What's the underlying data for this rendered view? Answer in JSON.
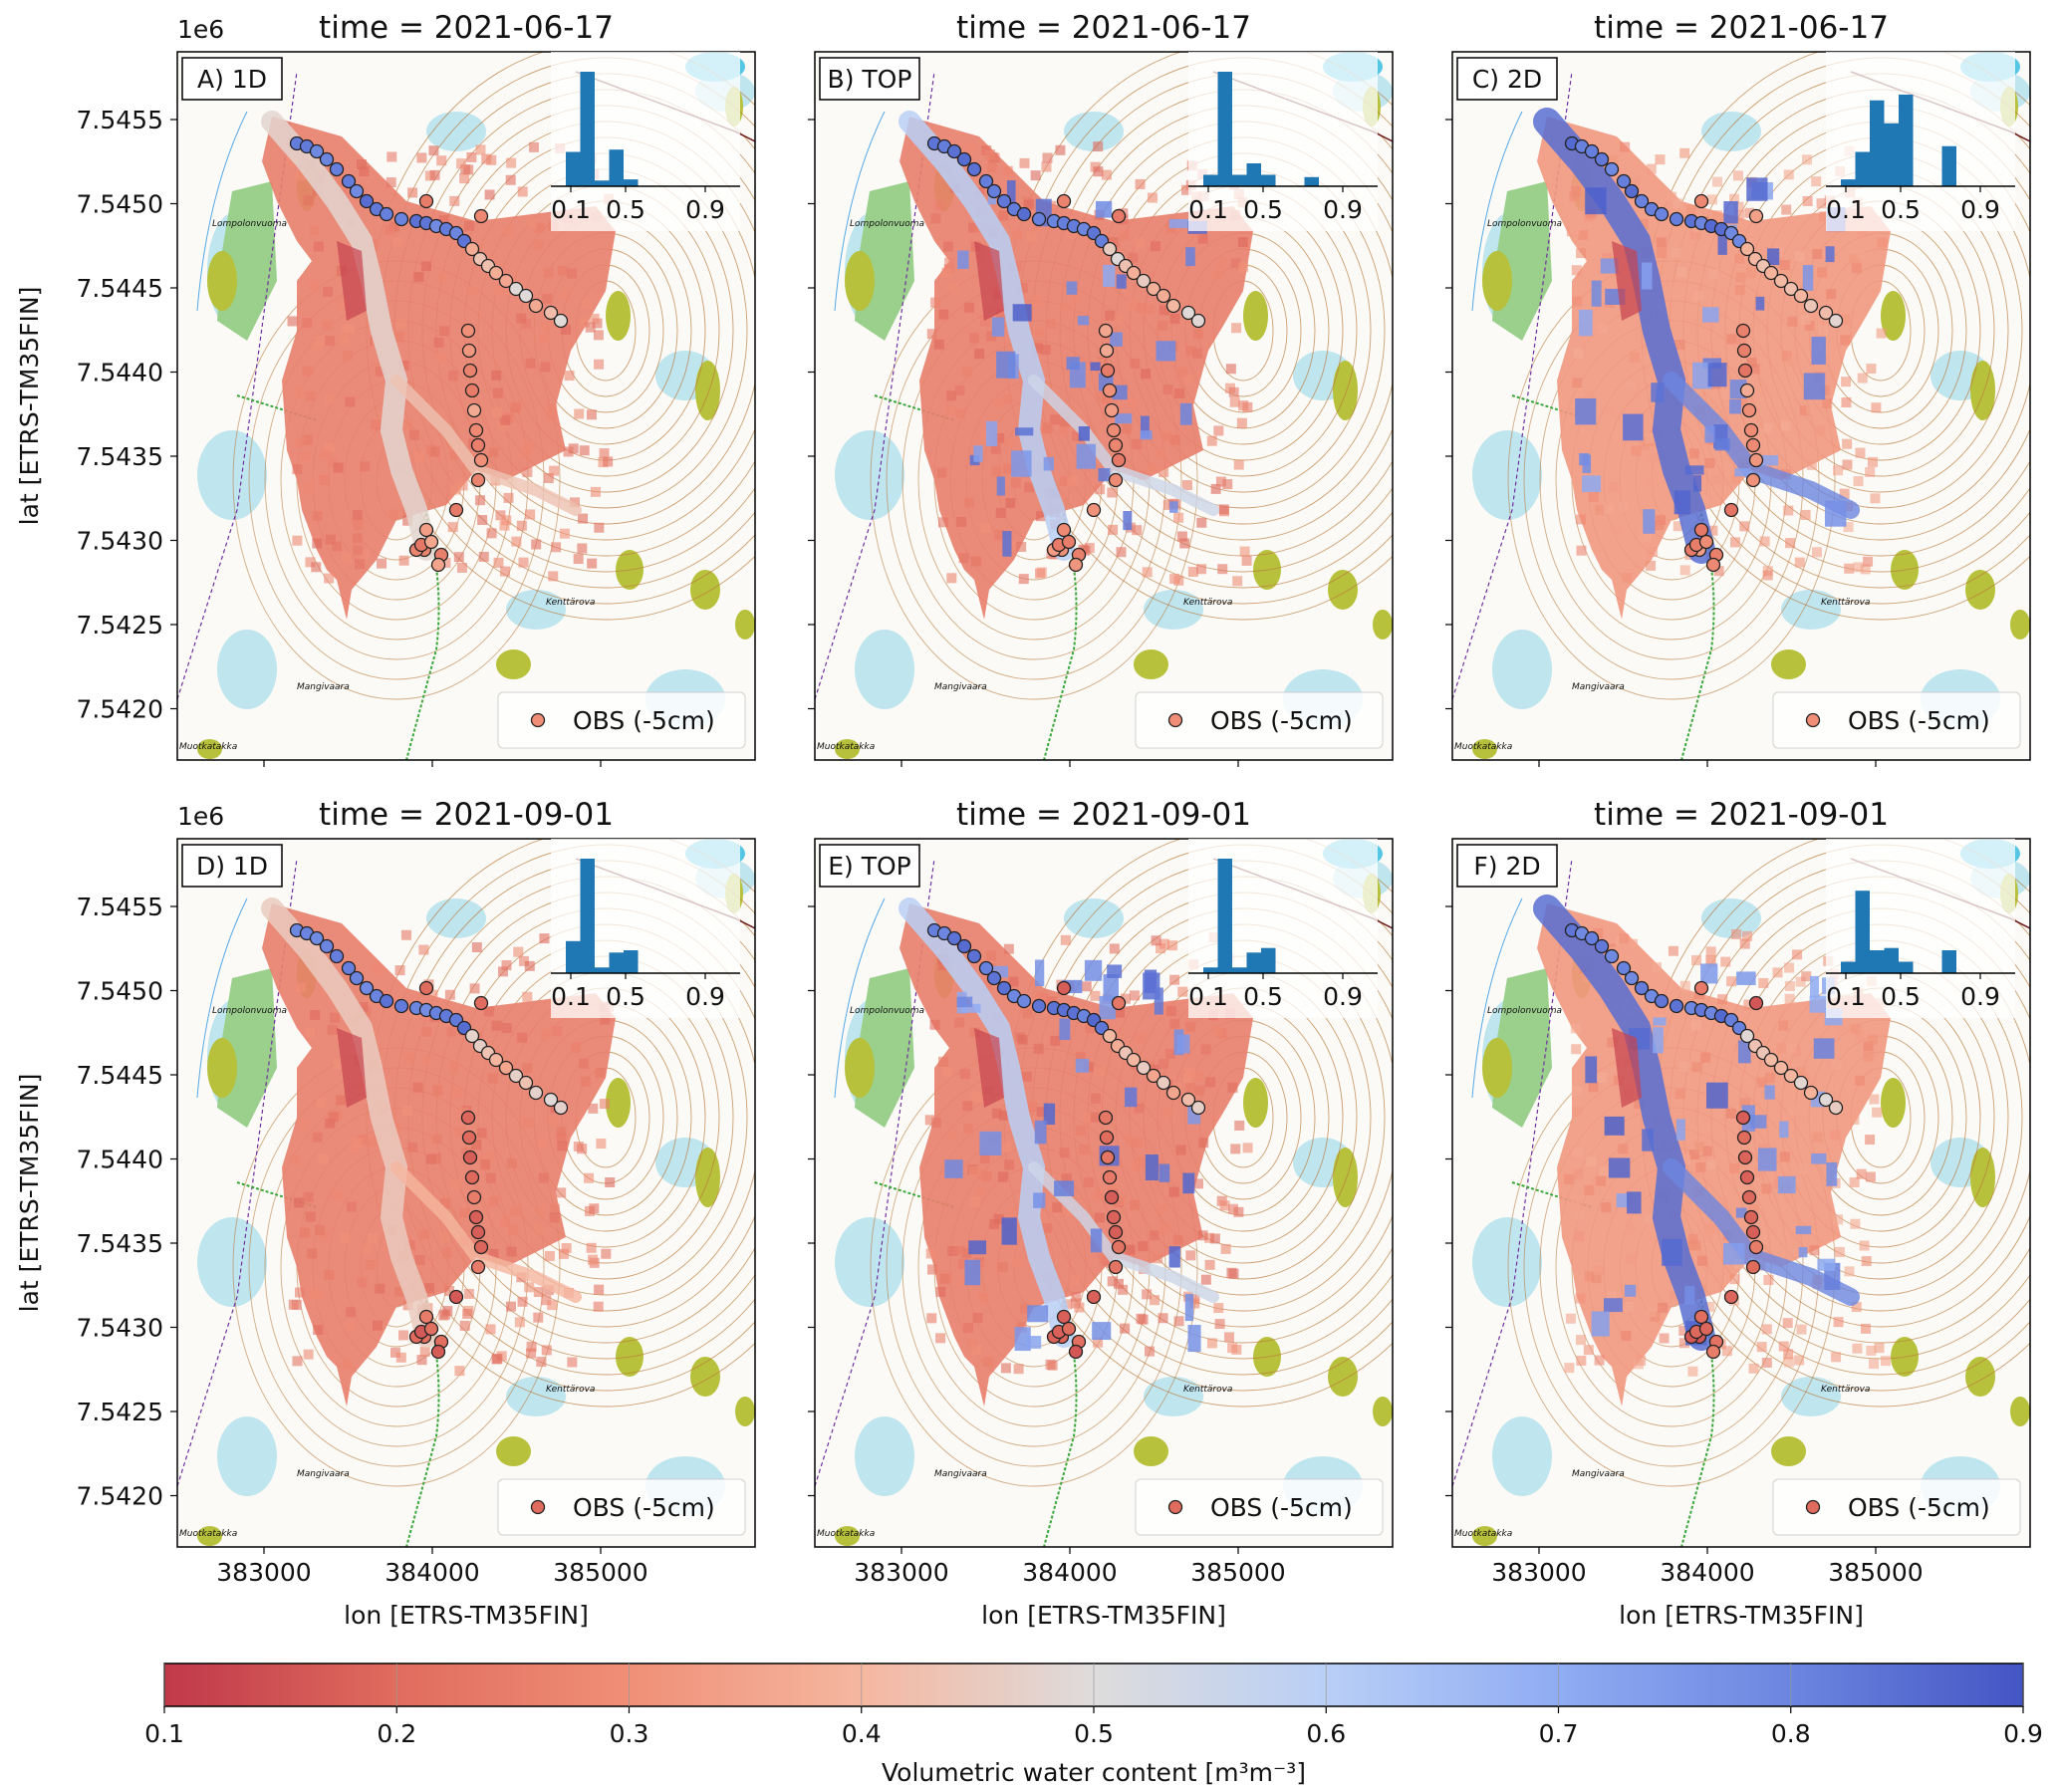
{
  "figure": {
    "ylabel": "lat [ETRS-TM35FIN]",
    "xlabel": "lon [ETRS-TM35FIN]",
    "y_offset_label": "1e6",
    "y_ticks": [
      "7.5455",
      "7.5450",
      "7.5445",
      "7.5440",
      "7.5435",
      "7.5430",
      "7.5425",
      "7.5420"
    ],
    "x_ticks": [
      "383000",
      "384000",
      "385000"
    ],
    "legend_label": "OBS (-5cm)",
    "map_place_names": [
      "Lompolonvuoma",
      "Kenttärova",
      "Mangivaara",
      "Muotkatakka"
    ]
  },
  "panels": [
    {
      "label": "A) 1D",
      "title": "time = 2021-06-17",
      "row": 0,
      "col": 0,
      "model": "1D",
      "hist": [
        0.3,
        1.0,
        0.05,
        0.32,
        0.06,
        0.0,
        0.0,
        0.0
      ]
    },
    {
      "label": "B) TOP",
      "title": "time = 2021-06-17",
      "row": 0,
      "col": 1,
      "model": "TOP",
      "hist": [
        0.1,
        1.0,
        0.1,
        0.2,
        0.1,
        0.0,
        0.0,
        0.08
      ]
    },
    {
      "label": "C) 2D",
      "title": "time = 2021-06-17",
      "row": 0,
      "col": 2,
      "model": "2D",
      "hist": [
        0.06,
        0.3,
        0.75,
        0.55,
        0.8,
        0.0,
        0.0,
        0.35
      ]
    },
    {
      "label": "D) 1D",
      "title": "time = 2021-09-01",
      "row": 1,
      "col": 0,
      "model": "1D",
      "hist": [
        0.28,
        1.0,
        0.05,
        0.18,
        0.2,
        0.0,
        0.0,
        0.0
      ]
    },
    {
      "label": "E) TOP",
      "title": "time = 2021-09-01",
      "row": 1,
      "col": 1,
      "model": "TOP",
      "hist": [
        0.05,
        1.0,
        0.05,
        0.18,
        0.22,
        0.0,
        0.0,
        0.0
      ]
    },
    {
      "label": "F) 2D",
      "title": "time = 2021-09-01",
      "row": 1,
      "col": 2,
      "model": "2D",
      "hist": [
        0.1,
        0.72,
        0.2,
        0.22,
        0.1,
        0.0,
        0.0,
        0.2
      ]
    }
  ],
  "histogram": {
    "tick_labels": [
      "0.1",
      "0.5",
      "0.9"
    ],
    "bar_color": "#1f77b4"
  },
  "colorbar": {
    "label": "Volumetric water content [m³m⁻³]",
    "ticks": [
      "0.1",
      "0.2",
      "0.3",
      "0.4",
      "0.5",
      "0.6",
      "0.7",
      "0.8",
      "0.9"
    ],
    "colormap": "coolwarm_r",
    "min": 0.1,
    "max": 0.9,
    "colors": {
      "low": "#c0394a",
      "mid": "#dddddd",
      "high": "#3b4cc0"
    }
  },
  "map_colors": {
    "contour": "#b9773a",
    "water": "#56c6e6",
    "wetland": "#bfe5ee",
    "forest_patch": "#b7c13c",
    "marsh_green": "#9bd08c",
    "road": "#3aa63a",
    "boundary": "#7030a0"
  }
}
